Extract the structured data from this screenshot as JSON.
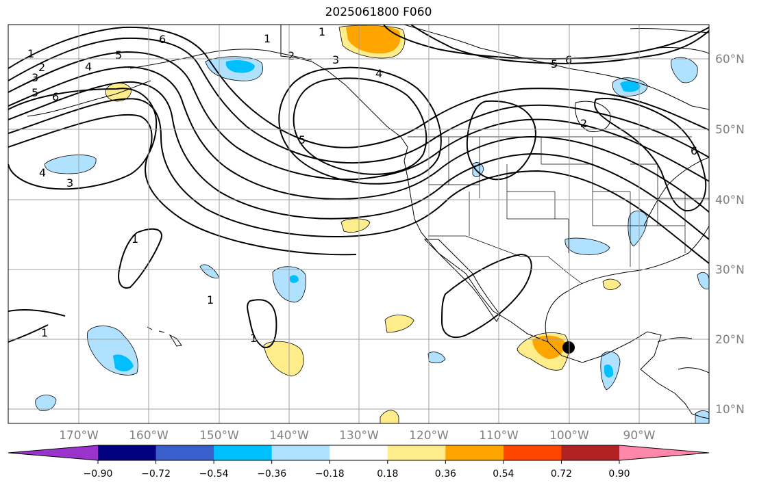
{
  "title": "2025061800 F060",
  "lon_labels": [
    "170°W",
    "160°W",
    "150°W",
    "140°W",
    "130°W",
    "120°W",
    "110°W",
    "100°W",
    "90°W"
  ],
  "lat_labels": [
    "60°N",
    "50°N",
    "40°N",
    "30°N",
    "20°N",
    "10°N"
  ],
  "colorbar": {
    "colors": [
      "#9933cc",
      "#000080",
      "#3a5fcd",
      "#00bfff",
      "#b0e2ff",
      "#ffffff",
      "#ffec8b",
      "#ffa500",
      "#ff4500",
      "#b22222",
      "#ff88aa"
    ],
    "tick_labels": [
      "−0.90",
      "−0.72",
      "−0.54",
      "−0.36",
      "−0.18",
      "0.18",
      "0.36",
      "0.54",
      "0.72",
      "0.90"
    ]
  },
  "contour_labels": [
    "1",
    "2",
    "3",
    "4",
    "5",
    "6",
    "1",
    "2",
    "3",
    "4",
    "5",
    "6",
    "1",
    "3",
    "4",
    "5",
    "6",
    "2",
    "5",
    "6",
    "1",
    "1",
    "1",
    "1"
  ],
  "colors": {
    "light_blue": "#b0e2ff",
    "sky_blue": "#00bfff",
    "light_yellow": "#ffec8b",
    "orange": "#ffa500",
    "grid": "#a0a0a0"
  }
}
